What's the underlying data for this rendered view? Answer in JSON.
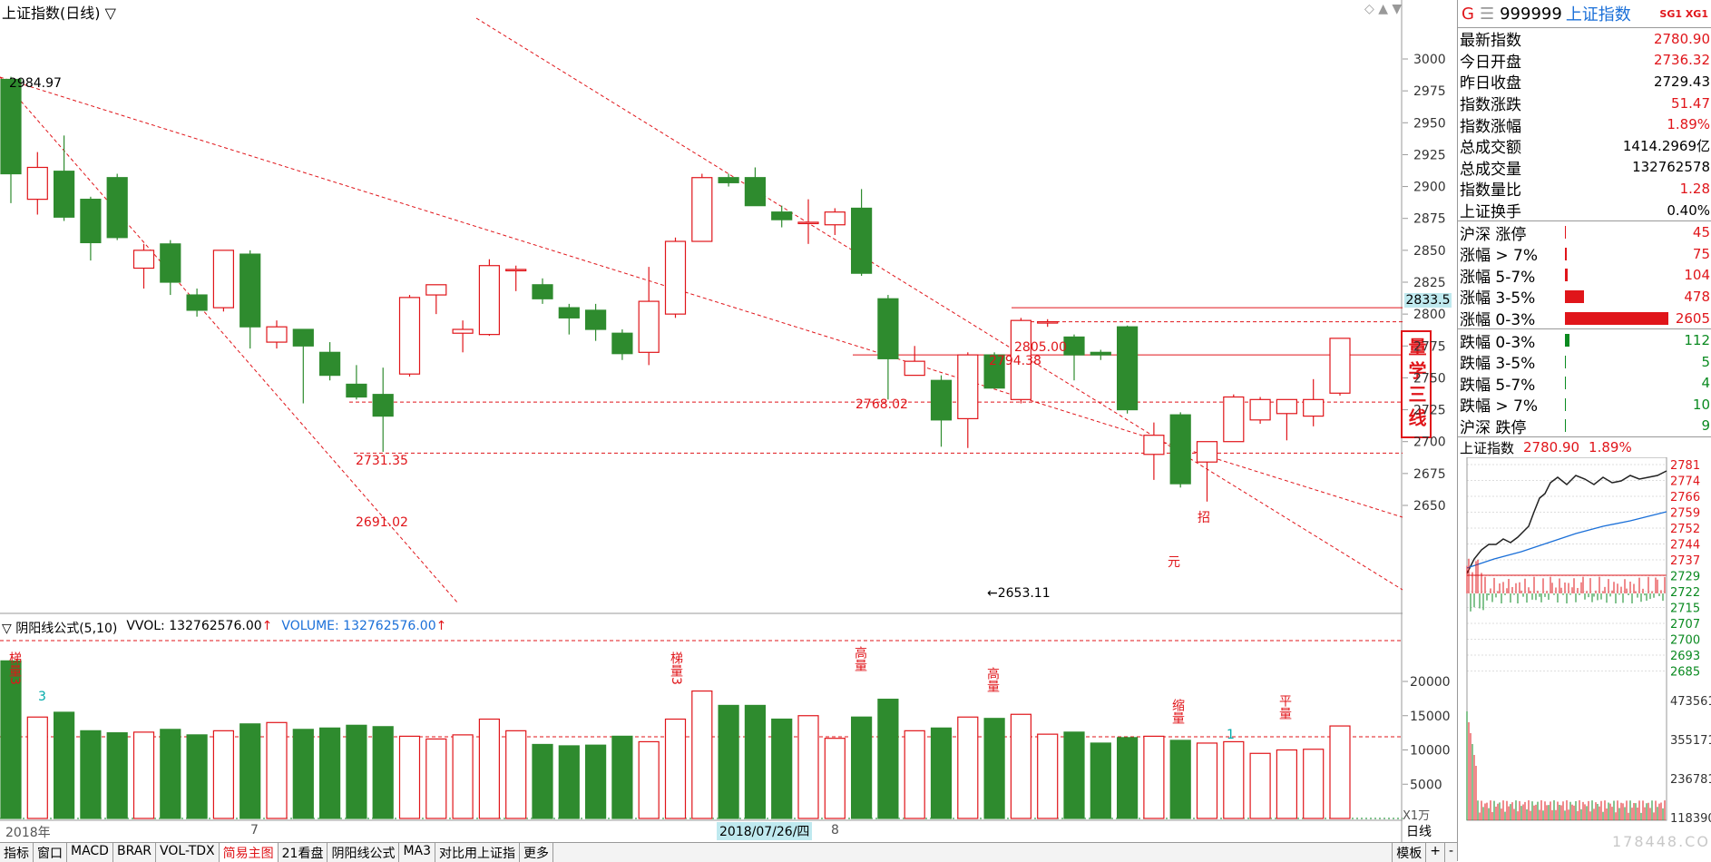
{
  "chart_header": {
    "title": "上证指数(日线) ▽",
    "indicator": "▽ 阴阳线公式(5,10)",
    "vvol": "VVOL: 132762576.00",
    "volume": "VOLUME: 132762576.00",
    "unit": "X1万"
  },
  "price_annotations": {
    "high_label": "2984.97",
    "low_label": "←2653.11",
    "l2805": "2805.00",
    "l2794": "2794.38",
    "l2768": "2768.02",
    "l2731": "2731.35",
    "l2691": "2691.02",
    "current": "2833.5",
    "marker_zhao": "招",
    "marker_yuan": "元"
  },
  "vol_labels": {
    "tiliang1": "梯量3",
    "tiliang2": "梯量3",
    "gaoliang1": "高量",
    "gaoliang2": "高量",
    "suoliang": "缩量",
    "pingliang": "平量",
    "n3": "3",
    "n1": "1"
  },
  "side_stamp": "量学三线",
  "time_axis": {
    "y2018": "2018年",
    "m7": "7",
    "date": "2018/07/26/四",
    "m8": "8",
    "daily": "日线"
  },
  "chart_data": {
    "type": "candlestick",
    "price_ticks": [
      3000,
      2975,
      2950,
      2925,
      2900,
      2875,
      2850,
      2825,
      2800,
      2775,
      2750,
      2725,
      2700,
      2675,
      2650
    ],
    "price_tick_labels": [
      "3000",
      "2975",
      "2950",
      "2925",
      "2900",
      "2875",
      "2850",
      "2825",
      "2800",
      "2775",
      "2750",
      "2725",
      "2700",
      "2675",
      "2650"
    ],
    "vol_ticks": [
      20000,
      15000,
      10000,
      5000
    ],
    "vol_tick_labels": [
      "20000",
      "15000",
      "10000",
      "5000"
    ],
    "candles": [
      [
        2984,
        2910,
        2986,
        2887,
        23000
      ],
      [
        2890,
        2915,
        2927,
        2878,
        14800
      ],
      [
        2912,
        2876,
        2940,
        2873,
        15500
      ],
      [
        2890,
        2856,
        2892,
        2842,
        12800
      ],
      [
        2907,
        2860,
        2910,
        2858,
        12500
      ],
      [
        2836,
        2850,
        2855,
        2820,
        12600
      ],
      [
        2855,
        2825,
        2858,
        2815,
        13000
      ],
      [
        2815,
        2803,
        2820,
        2798,
        12200
      ],
      [
        2805,
        2850,
        2850,
        2802,
        12800
      ],
      [
        2847,
        2790,
        2850,
        2773,
        13800
      ],
      [
        2778,
        2790,
        2795,
        2773,
        14000
      ],
      [
        2788,
        2775,
        2788,
        2730,
        13000
      ],
      [
        2770,
        2752,
        2778,
        2748,
        13200
      ],
      [
        2745,
        2735,
        2760,
        2733,
        13600
      ],
      [
        2737,
        2720,
        2758,
        2692,
        13400
      ],
      [
        2753,
        2813,
        2815,
        2751,
        12000
      ],
      [
        2815,
        2823,
        2823,
        2800,
        11600
      ],
      [
        2785,
        2788,
        2795,
        2770,
        12200
      ],
      [
        2784,
        2838,
        2843,
        2783,
        14500
      ],
      [
        2835,
        2835,
        2838,
        2818,
        12800
      ],
      [
        2823,
        2812,
        2828,
        2808,
        10800
      ],
      [
        2805,
        2797,
        2808,
        2784,
        10600
      ],
      [
        2803,
        2788,
        2808,
        2779,
        10700
      ],
      [
        2785,
        2769,
        2788,
        2764,
        12000
      ],
      [
        2770,
        2810,
        2837,
        2760,
        11200
      ],
      [
        2800,
        2857,
        2860,
        2797,
        14500
      ],
      [
        2857,
        2907,
        2910,
        2857,
        18600
      ],
      [
        2907,
        2903,
        2910,
        2900,
        16500
      ],
      [
        2907,
        2885,
        2915,
        2885,
        16500
      ],
      [
        2880,
        2874,
        2885,
        2868,
        14500
      ],
      [
        2872,
        2872,
        2890,
        2855,
        15000
      ],
      [
        2870,
        2880,
        2883,
        2862,
        11700
      ],
      [
        2883,
        2832,
        2898,
        2830,
        14800
      ],
      [
        2812,
        2765,
        2815,
        2733,
        17400
      ],
      [
        2752,
        2763,
        2775,
        2753,
        12800
      ],
      [
        2748,
        2717,
        2752,
        2696,
        13200
      ],
      [
        2718,
        2768,
        2770,
        2695,
        14800
      ],
      [
        2768,
        2742,
        2770,
        2742,
        14600
      ],
      [
        2733,
        2795,
        2797,
        2730,
        15200
      ],
      [
        2794,
        2794,
        2796,
        2790,
        12300
      ],
      [
        2782,
        2768,
        2784,
        2748,
        12600
      ],
      [
        2770,
        2768,
        2772,
        2764,
        11000
      ],
      [
        2790,
        2725,
        2791,
        2722,
        11800
      ],
      [
        2690,
        2705,
        2715,
        2670,
        12000
      ],
      [
        2721,
        2667,
        2723,
        2664,
        11400
      ],
      [
        2684,
        2700,
        2700,
        2653,
        11000
      ],
      [
        2700,
        2735,
        2737,
        2700,
        11200
      ],
      [
        2717,
        2733,
        2735,
        2714,
        9500
      ],
      [
        2722,
        2733,
        2733,
        2701,
        10000
      ],
      [
        2720,
        2733,
        2749,
        2712,
        10100
      ],
      [
        2738,
        2781,
        2781,
        2736,
        13500
      ]
    ]
  },
  "quote": {
    "head": {
      "g": "G",
      "menu": "☰",
      "code": "999999",
      "name": "上证指数",
      "tags": "SG1 XG1"
    },
    "rows": [
      {
        "label": "最新指数",
        "value": "2780.90",
        "color": "red"
      },
      {
        "label": "今日开盘",
        "value": "2736.32",
        "color": "red"
      },
      {
        "label": "昨日收盘",
        "value": "2729.43",
        "color": "black"
      },
      {
        "label": "指数涨跌",
        "value": "51.47",
        "color": "red"
      },
      {
        "label": "指数涨幅",
        "value": "1.89%",
        "color": "red"
      },
      {
        "label": "总成交额",
        "value": "1414.2969亿",
        "color": "black"
      },
      {
        "label": "总成交量",
        "value": "132762578",
        "color": "black"
      },
      {
        "label": "指数量比",
        "value": "1.28",
        "color": "red"
      },
      {
        "label": "上证换手",
        "value": "0.40%",
        "color": "black"
      }
    ],
    "dist": [
      {
        "label": "沪深 涨停",
        "value": "45",
        "frac": 0.01,
        "color": "#e0151a"
      },
      {
        "label": "涨幅 > 7%",
        "value": "75",
        "frac": 0.02,
        "color": "#e0151a"
      },
      {
        "label": "涨幅 5-7%",
        "value": "104",
        "frac": 0.03,
        "color": "#e0151a"
      },
      {
        "label": "涨幅 3-5%",
        "value": "478",
        "frac": 0.18,
        "color": "#e0151a"
      },
      {
        "label": "涨幅 0-3%",
        "value": "2605",
        "frac": 1.0,
        "color": "#e0151a"
      },
      {
        "label": "跌幅 0-3%",
        "value": "112",
        "frac": 0.04,
        "color": "#0a8a20"
      },
      {
        "label": "跌幅 3-5%",
        "value": "5",
        "frac": 0.005,
        "color": "#0a8a20"
      },
      {
        "label": "跌幅 5-7%",
        "value": "4",
        "frac": 0.005,
        "color": "#0a8a20"
      },
      {
        "label": "跌幅 > 7%",
        "value": "10",
        "frac": 0.005,
        "color": "#0a8a20"
      },
      {
        "label": "沪深 跌停",
        "value": "9",
        "frac": 0.005,
        "color": "#0a8a20"
      }
    ]
  },
  "mini_chart": {
    "title": "上证指数",
    "price": "2780.90",
    "pct": "1.89%",
    "price_ticks": [
      "2781",
      "2774",
      "2766",
      "2759",
      "2752",
      "2744",
      "2737",
      "2729",
      "2722",
      "2715",
      "2707",
      "2700",
      "2693",
      "2685"
    ],
    "vol_ticks": [
      "473561",
      "355171",
      "236781",
      "118390"
    ]
  },
  "tabs": [
    "指标",
    "窗口",
    "MACD",
    "BRAR",
    "VOL-TDX",
    "简易主图",
    "21看盘",
    "阴阳线公式",
    "MA3",
    "对比用上证指",
    "更多"
  ],
  "active_tab": "简易主图",
  "right_tabs": [
    "模板",
    "+",
    "-"
  ],
  "watermark": "178448.COM"
}
